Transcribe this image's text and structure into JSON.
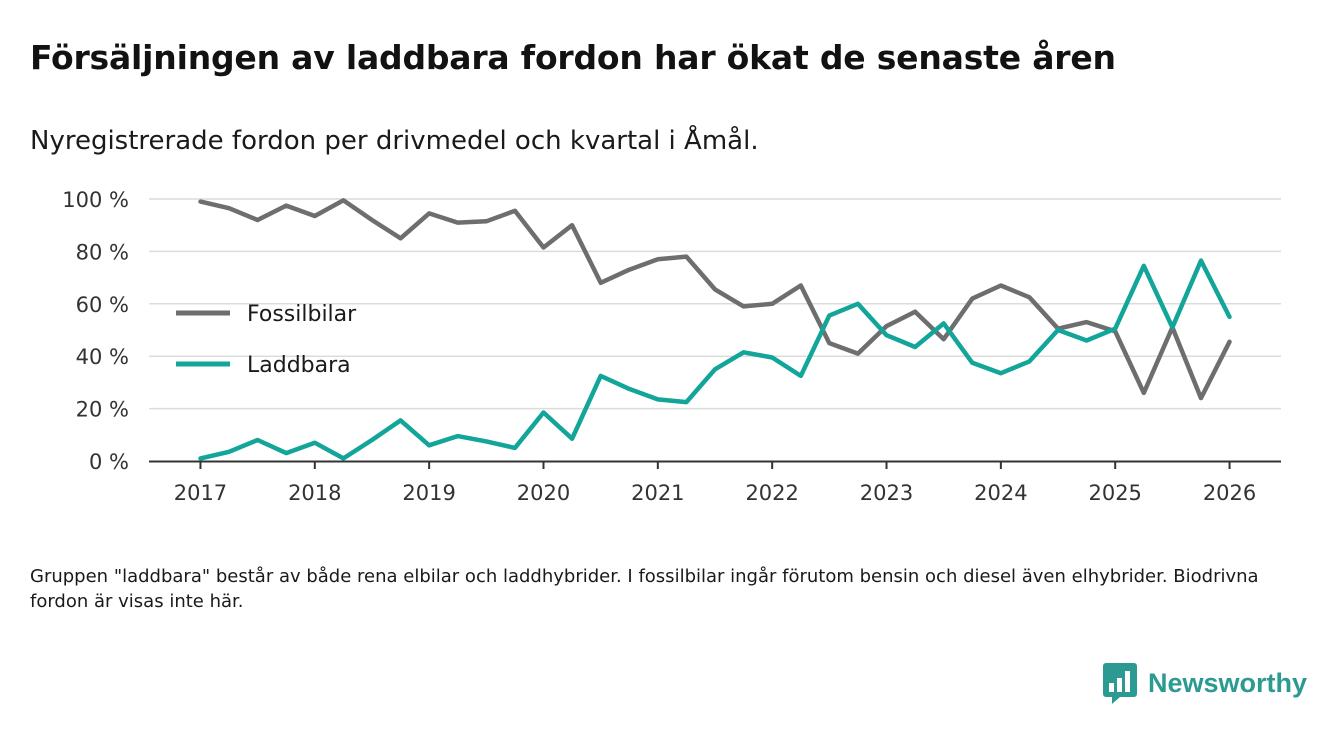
{
  "title": "Försäljningen av laddbara fordon har ökat de senaste åren",
  "subtitle": "Nyregistrerade fordon per drivmedel och kvartal i Åmål.",
  "note": "Gruppen \"laddbara\" består av både rena elbilar och laddhybrider. I fossilbilar ingår förutom bensin och diesel även elhybrider. Biodrivna fordon är visas inte här.",
  "brand": {
    "name": "Newsworthy",
    "color": "#2a9a92",
    "icon": "bar-chart-logo-icon"
  },
  "chart_data": {
    "type": "line",
    "x": [
      2017.0,
      2017.25,
      2017.5,
      2017.75,
      2018.0,
      2018.25,
      2018.5,
      2018.75,
      2019.0,
      2019.25,
      2019.5,
      2019.75,
      2020.0,
      2020.25,
      2020.5,
      2020.75,
      2021.0,
      2021.25,
      2021.5,
      2021.75,
      2022.0,
      2022.25,
      2022.5,
      2022.75,
      2023.0,
      2023.25,
      2023.5,
      2023.75,
      2024.0,
      2024.25,
      2024.5,
      2024.75,
      2025.0,
      2025.25,
      2025.5,
      2025.75,
      2026.0
    ],
    "series": [
      {
        "name": "Fossilbilar",
        "color": "#6e6e70",
        "values": [
          99,
          96.5,
          92,
          97.5,
          93.5,
          99.5,
          92,
          85,
          94.5,
          91,
          91.5,
          95.5,
          81.5,
          90,
          68,
          73,
          77,
          78,
          65.5,
          59,
          60,
          67,
          45,
          41,
          51.5,
          57,
          46.5,
          62,
          67,
          62.5,
          50.5,
          53,
          49.5,
          26,
          51,
          24,
          45.5
        ]
      },
      {
        "name": "Laddbara",
        "color": "#13a59a",
        "values": [
          1,
          3.5,
          8,
          3,
          7,
          1,
          8,
          15.5,
          6,
          9.5,
          7.5,
          5,
          18.5,
          8.5,
          32.5,
          27.5,
          23.5,
          22.5,
          35,
          41.5,
          39.5,
          32.5,
          55.5,
          60,
          48,
          43.5,
          52.5,
          37.5,
          33.5,
          38,
          50,
          46,
          50.5,
          74.5,
          51,
          76.5,
          55
        ]
      }
    ],
    "yticks": [
      0,
      20,
      40,
      60,
      80,
      100
    ],
    "ytick_labels": [
      "0 %",
      "20 %",
      "40 %",
      "60 %",
      "80 %",
      "100 %"
    ],
    "xticks": [
      2017,
      2018,
      2019,
      2020,
      2021,
      2022,
      2023,
      2024,
      2025,
      2026
    ],
    "xtick_labels": [
      "2017",
      "2018",
      "2019",
      "2020",
      "2021",
      "2022",
      "2023",
      "2024",
      "2025",
      "2026"
    ],
    "ylim": [
      0,
      100
    ],
    "xlim": [
      2016.55,
      2026.45
    ],
    "xlabel": "",
    "ylabel": "",
    "grid": true,
    "legend": [
      "Fossilbilar",
      "Laddbara"
    ],
    "legend_position": "left-center"
  }
}
